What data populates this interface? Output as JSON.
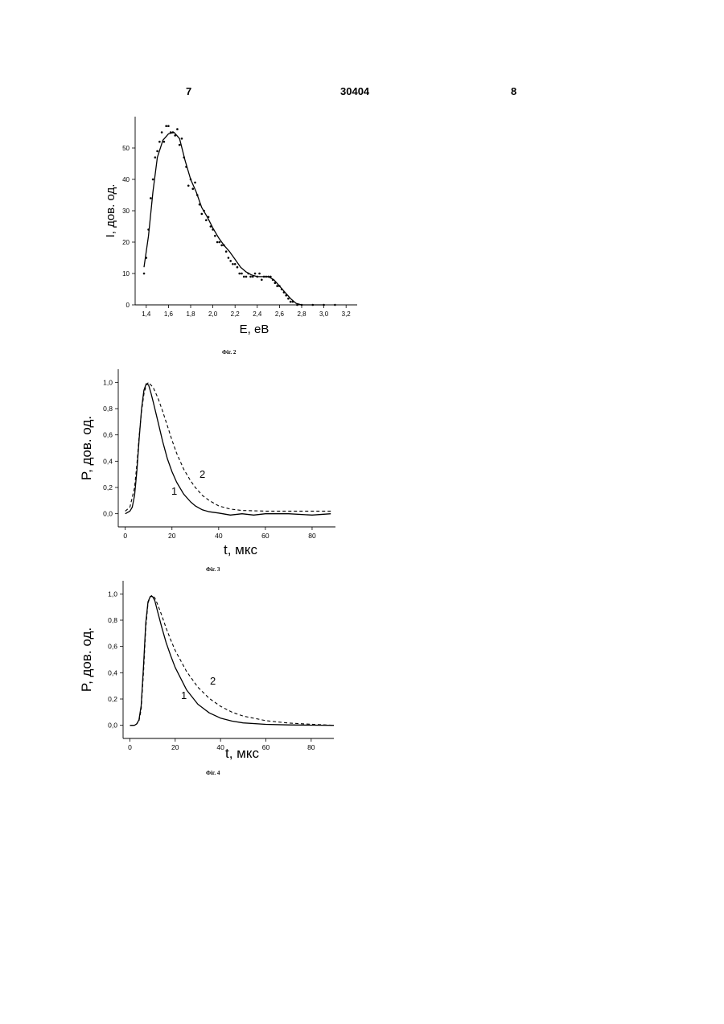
{
  "header": {
    "left_page": "7",
    "doc_number": "30404",
    "right_page": "8"
  },
  "figures": [
    {
      "caption": "Фіг. 2"
    },
    {
      "caption": "Фіг. 3"
    },
    {
      "caption": "Фіг. 4"
    }
  ],
  "chart_data": [
    {
      "type": "scatter",
      "xlabel": "E, eВ",
      "ylabel": "I, дов. од.",
      "xlim": [
        1.3,
        3.3
      ],
      "ylim": [
        0,
        60
      ],
      "x_ticks": [
        "1,4",
        "1,6",
        "1,8",
        "2,0",
        "2,2",
        "2,4",
        "2,6",
        "2,8",
        "3,0",
        "3,2"
      ],
      "y_ticks": [
        "0",
        "10",
        "20",
        "30",
        "40",
        "50"
      ],
      "series": [
        {
          "style": "points",
          "x": [
            1.38,
            1.4,
            1.42,
            1.44,
            1.46,
            1.48,
            1.5,
            1.52,
            1.54,
            1.56,
            1.58,
            1.6,
            1.62,
            1.64,
            1.66,
            1.68,
            1.7,
            1.72,
            1.74,
            1.76,
            1.78,
            1.8,
            1.82,
            1.84,
            1.86,
            1.88,
            1.9,
            1.92,
            1.94,
            1.96,
            1.98,
            2.0,
            2.02,
            2.04,
            2.06,
            2.08,
            2.1,
            2.12,
            2.14,
            2.16,
            2.18,
            2.2,
            2.22,
            2.24,
            2.26,
            2.28,
            2.3,
            2.32,
            2.34,
            2.36,
            2.38,
            2.4,
            2.42,
            2.44,
            2.46,
            2.48,
            2.5,
            2.52,
            2.54,
            2.56,
            2.58,
            2.6,
            2.62,
            2.64,
            2.66,
            2.68,
            2.7,
            2.72,
            2.76,
            2.8,
            2.9,
            3.0,
            3.1
          ],
          "y": [
            10,
            15,
            24,
            34,
            40,
            47,
            49,
            52,
            55,
            52,
            57,
            57,
            55,
            55,
            54,
            56,
            51,
            53,
            47,
            44,
            38,
            40,
            37,
            39,
            35,
            32,
            29,
            30,
            27,
            28,
            25,
            24,
            22,
            20,
            20,
            19,
            19,
            17,
            15,
            14,
            13,
            13,
            12,
            10,
            10,
            9,
            9,
            10,
            9,
            9,
            10,
            9,
            10,
            8,
            9,
            9,
            9,
            9,
            8,
            7,
            6,
            6,
            5,
            4,
            3,
            2,
            1,
            1,
            0,
            0,
            0,
            0,
            0
          ]
        },
        {
          "style": "line",
          "x": [
            1.38,
            1.42,
            1.46,
            1.5,
            1.55,
            1.6,
            1.65,
            1.7,
            1.75,
            1.8,
            1.85,
            1.9,
            1.95,
            2.0,
            2.05,
            2.1,
            2.15,
            2.2,
            2.25,
            2.3,
            2.35,
            2.4,
            2.45,
            2.5,
            2.55,
            2.6,
            2.65,
            2.7,
            2.75,
            2.8,
            2.85,
            3.0
          ],
          "y": [
            12,
            22,
            36,
            47,
            52.5,
            54.5,
            55,
            53,
            46,
            40,
            36,
            31,
            28,
            24.5,
            21.5,
            19,
            17,
            14.5,
            12,
            10.5,
            9.5,
            9,
            9,
            9,
            8,
            6,
            4,
            2,
            0.5,
            0,
            0,
            0
          ]
        }
      ]
    },
    {
      "type": "line",
      "xlabel": "t, мкс",
      "ylabel": "P, дов. од.",
      "xlim": [
        -3,
        90
      ],
      "ylim": [
        -0.1,
        1.1
      ],
      "x_ticks": [
        "0",
        "20",
        "40",
        "60",
        "80"
      ],
      "y_ticks": [
        "0,0",
        "0,2",
        "0,4",
        "0,6",
        "0,8",
        "1,0"
      ],
      "series": [
        {
          "name": "1",
          "style": "solid",
          "x": [
            0,
            2,
            3,
            4,
            5,
            6,
            7,
            8,
            9,
            10,
            11,
            12,
            14,
            16,
            18,
            20,
            22,
            25,
            28,
            30,
            33,
            36,
            40,
            45,
            50,
            55,
            60,
            70,
            80,
            88
          ],
          "y": [
            0.0,
            0.02,
            0.05,
            0.14,
            0.33,
            0.58,
            0.8,
            0.94,
            0.99,
            0.98,
            0.92,
            0.85,
            0.7,
            0.55,
            0.42,
            0.32,
            0.24,
            0.15,
            0.09,
            0.06,
            0.03,
            0.015,
            0.005,
            -0.01,
            0.0,
            -0.01,
            0.0,
            0.0,
            -0.01,
            0.0
          ]
        },
        {
          "name": "2",
          "style": "dashed",
          "x": [
            0,
            2,
            4,
            5,
            6,
            7,
            8,
            9,
            10,
            11,
            12,
            14,
            16,
            18,
            20,
            22,
            25,
            28,
            30,
            33,
            36,
            40,
            45,
            50,
            60,
            70,
            80,
            88
          ],
          "y": [
            0.02,
            0.05,
            0.2,
            0.38,
            0.6,
            0.78,
            0.91,
            0.98,
            1.0,
            0.98,
            0.96,
            0.88,
            0.78,
            0.67,
            0.56,
            0.46,
            0.34,
            0.25,
            0.2,
            0.14,
            0.1,
            0.06,
            0.035,
            0.025,
            0.02,
            0.02,
            0.02,
            0.02
          ]
        }
      ]
    },
    {
      "type": "line",
      "xlabel": "t, мкс",
      "ylabel": "P, дов. од.",
      "xlim": [
        -3,
        90
      ],
      "ylim": [
        -0.1,
        1.1
      ],
      "x_ticks": [
        "0",
        "20",
        "40",
        "60",
        "80"
      ],
      "y_ticks": [
        "0,0",
        "0,2",
        "0,4",
        "0,6",
        "0,8",
        "1,0"
      ],
      "series": [
        {
          "name": "1",
          "style": "solid",
          "x": [
            0,
            2,
            3,
            4,
            5,
            6,
            7,
            8,
            9,
            10,
            11,
            12,
            14,
            16,
            18,
            20,
            25,
            30,
            35,
            40,
            45,
            50,
            60,
            70,
            80,
            90
          ],
          "y": [
            0.0,
            0.0,
            0.01,
            0.04,
            0.15,
            0.45,
            0.78,
            0.94,
            0.98,
            0.98,
            0.95,
            0.88,
            0.75,
            0.63,
            0.53,
            0.44,
            0.27,
            0.16,
            0.095,
            0.055,
            0.032,
            0.018,
            0.007,
            0.003,
            0.001,
            0.0
          ]
        },
        {
          "name": "2",
          "style": "dashed",
          "x": [
            0,
            2,
            3,
            4,
            5,
            6,
            7,
            8,
            9,
            10,
            11,
            12,
            14,
            16,
            18,
            20,
            25,
            30,
            35,
            40,
            45,
            50,
            60,
            70,
            80,
            90
          ],
          "y": [
            0.0,
            0.0,
            0.01,
            0.03,
            0.12,
            0.4,
            0.74,
            0.93,
            0.98,
            0.99,
            0.97,
            0.93,
            0.84,
            0.74,
            0.65,
            0.57,
            0.41,
            0.29,
            0.205,
            0.145,
            0.1,
            0.07,
            0.035,
            0.017,
            0.008,
            0.0
          ]
        }
      ]
    }
  ]
}
